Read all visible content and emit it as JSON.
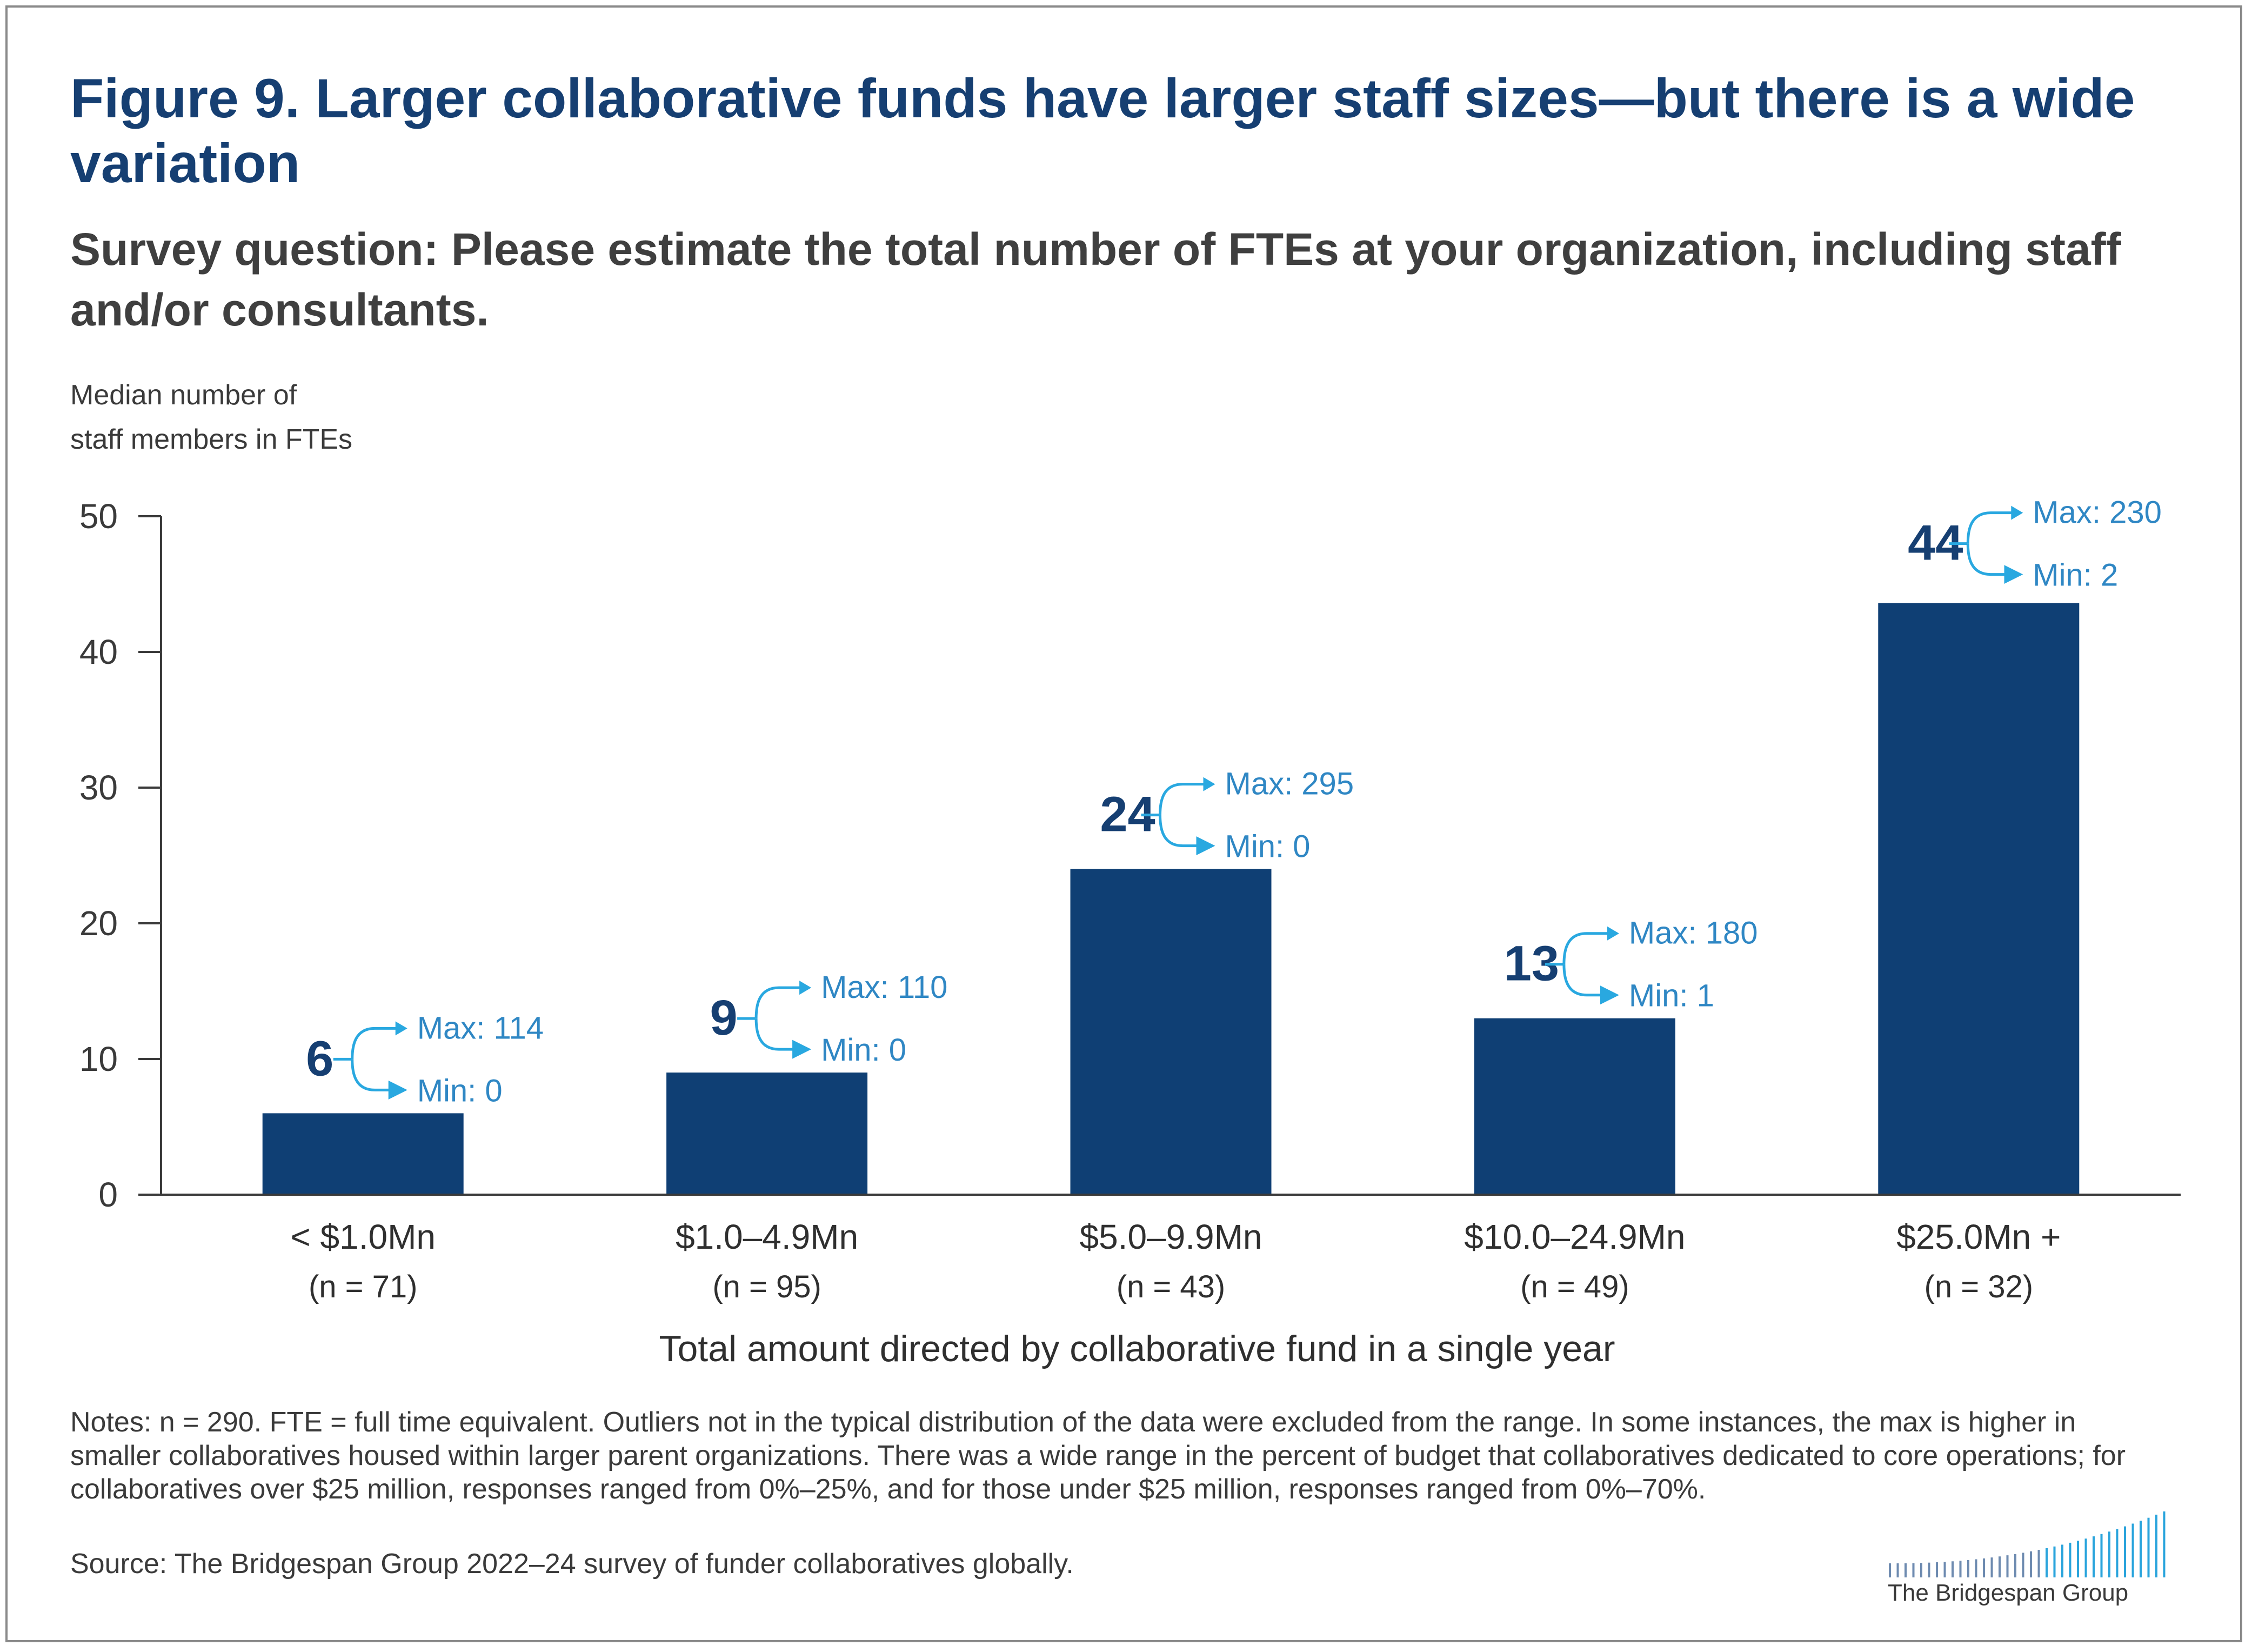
{
  "title": "Figure 9. Larger collaborative funds have larger staff sizes—but there is a wide variation",
  "subtitle": "Survey question: Please estimate the total number of FTEs at your organization, including staff and/or consultants.",
  "colors": {
    "bar": "#0f3f74",
    "title": "#163f72",
    "range": "#2f87c4",
    "range_arrow": "#29a8e0",
    "axis": "#3a3a3a"
  },
  "chart_data": {
    "type": "bar",
    "ylabel": [
      "Median number of",
      "staff members in FTEs"
    ],
    "xlabel": "Total amount directed by collaborative fund in a single year",
    "ylim": [
      0,
      50
    ],
    "yticks": [
      0,
      10,
      20,
      30,
      40,
      50
    ],
    "grid": false,
    "categories": [
      "< $1.0Mn",
      "$1.0–4.9Mn",
      "$5.0–9.9Mn",
      "$10.0–24.9Mn",
      "$25.0Mn +"
    ],
    "counts": [
      "(n = 71)",
      "(n = 95)",
      "(n = 43)",
      "(n = 49)",
      "(n = 32)"
    ],
    "values": [
      6,
      9,
      24,
      13,
      44
    ],
    "bar_heights": [
      6,
      9,
      24,
      13,
      43.6
    ],
    "max": [
      "Max: 114",
      "Max: 110",
      "Max: 295",
      "Max: 180",
      "Max: 230"
    ],
    "min": [
      "Min: 0",
      "Min: 0",
      "Min: 0",
      "Min: 1",
      "Min: 2"
    ]
  },
  "notes": "Notes: n = 290. FTE = full time equivalent. Outliers not in the typical distribution of the data were excluded from the range. In some instances, the max is higher in smaller collaboratives housed within larger parent organizations. There was a wide range in the percent of budget that collaboratives dedicated to core operations; for collaboratives over $25 million, responses ranged from 0%–25%, and for those under $25 million, responses ranged from 0%–70%.",
  "source": "Source: The Bridgespan Group 2022–24 survey of funder collaboratives globally.",
  "logo": {
    "text": "The Bridgespan Group"
  }
}
